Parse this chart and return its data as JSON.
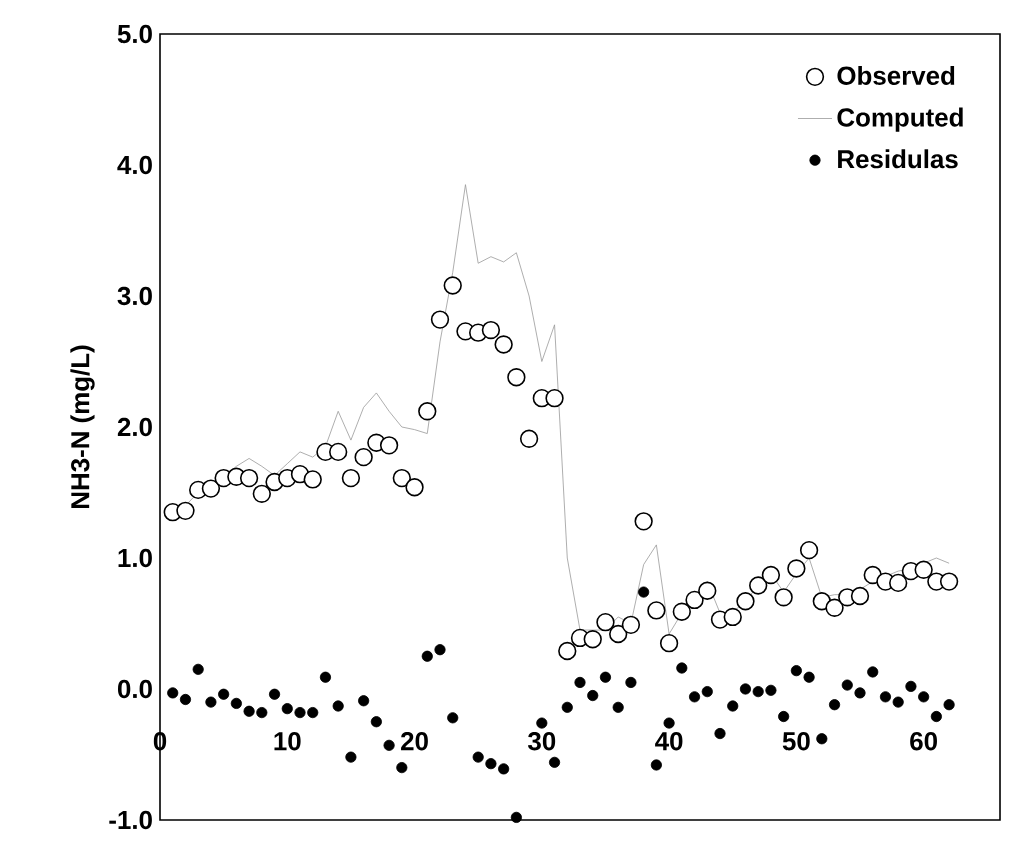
{
  "chart_data": {
    "type": "scatter",
    "ylabel": "NH3-N (mg/L)",
    "xlim": [
      0,
      66
    ],
    "xticks": [
      0,
      10,
      20,
      30,
      40,
      50,
      60
    ],
    "ylim": [
      -1,
      5
    ],
    "yticks": [
      {
        "value": -1,
        "label": "-1.0"
      },
      {
        "value": 0,
        "label": "0.0"
      },
      {
        "value": 1,
        "label": "1.0"
      },
      {
        "value": 2,
        "label": "2.0"
      },
      {
        "value": 3,
        "label": "3.0"
      },
      {
        "value": 4,
        "label": "4.0"
      },
      {
        "value": 5,
        "label": "5.0"
      }
    ],
    "x": [
      1,
      2,
      3,
      4,
      5,
      6,
      7,
      8,
      9,
      10,
      11,
      12,
      13,
      14,
      15,
      16,
      17,
      18,
      19,
      20,
      21,
      22,
      23,
      24,
      25,
      26,
      27,
      28,
      29,
      30,
      31,
      32,
      33,
      34,
      35,
      36,
      37,
      38,
      39,
      40,
      41,
      42,
      43,
      44,
      45,
      46,
      47,
      48,
      49,
      50,
      51,
      52,
      53,
      54,
      55,
      56,
      57,
      58,
      59,
      60,
      61,
      62
    ],
    "legend": "top right",
    "grid": false,
    "series": [
      {
        "name": "Observed",
        "marker": "circle",
        "color": "#000000",
        "values": [
          1.35,
          1.36,
          1.52,
          1.53,
          1.61,
          1.62,
          1.61,
          1.49,
          1.58,
          1.61,
          1.64,
          1.6,
          1.81,
          1.81,
          1.61,
          1.77,
          1.88,
          1.86,
          1.61,
          1.54,
          2.12,
          2.82,
          3.08,
          2.73,
          2.72,
          2.74,
          2.63,
          2.38,
          1.91,
          2.22,
          2.22,
          0.29,
          0.39,
          0.38,
          0.51,
          0.42,
          0.49,
          1.28,
          0.6,
          0.35,
          0.59,
          0.68,
          0.75,
          0.53,
          0.55,
          0.67,
          0.79,
          0.87,
          0.7,
          0.92,
          1.06,
          0.67,
          0.62,
          0.7,
          0.71,
          0.87,
          0.82,
          0.81,
          0.9,
          0.91,
          0.82,
          0.82
        ]
      },
      {
        "name": "Computed",
        "type": "line",
        "marker": "none",
        "line_style": "solid",
        "color": "#999999",
        "values": [
          1.38,
          1.4,
          1.5,
          1.56,
          1.62,
          1.7,
          1.76,
          1.7,
          1.63,
          1.72,
          1.81,
          1.77,
          1.85,
          2.12,
          1.9,
          2.15,
          2.26,
          2.12,
          2.0,
          1.98,
          1.95,
          2.65,
          3.18,
          3.85,
          3.25,
          3.3,
          3.26,
          3.33,
          3.0,
          2.5,
          2.78,
          1.0,
          0.45,
          0.45,
          0.45,
          0.55,
          0.5,
          0.95,
          1.1,
          0.42,
          0.58,
          0.7,
          0.82,
          0.58,
          0.58,
          0.68,
          0.78,
          0.88,
          0.74,
          0.88,
          1.0,
          0.7,
          0.72,
          0.72,
          0.76,
          0.82,
          0.86,
          0.9,
          0.92,
          0.96,
          1.0,
          0.96
        ]
      },
      {
        "name": "Residulas",
        "marker": "circle",
        "color": "#000000",
        "values": [
          -0.03,
          -0.08,
          0.15,
          -0.1,
          -0.04,
          -0.11,
          -0.17,
          -0.18,
          -0.04,
          -0.15,
          -0.18,
          -0.18,
          0.09,
          -0.13,
          -0.52,
          -0.09,
          -0.25,
          -0.43,
          -0.6,
          null,
          0.25,
          0.3,
          -0.22,
          null,
          -0.52,
          -0.57,
          -0.61,
          -0.98,
          null,
          -0.26,
          -0.56,
          -0.14,
          0.05,
          -0.05,
          0.09,
          -0.14,
          0.05,
          0.74,
          -0.58,
          -0.26,
          0.16,
          -0.06,
          -0.02,
          -0.34,
          -0.13,
          0.0,
          -0.02,
          -0.01,
          -0.21,
          0.14,
          0.09,
          -0.38,
          -0.12,
          0.03,
          -0.03,
          0.13,
          -0.06,
          -0.1,
          0.02,
          -0.06,
          -0.21,
          -0.12
        ]
      }
    ]
  }
}
